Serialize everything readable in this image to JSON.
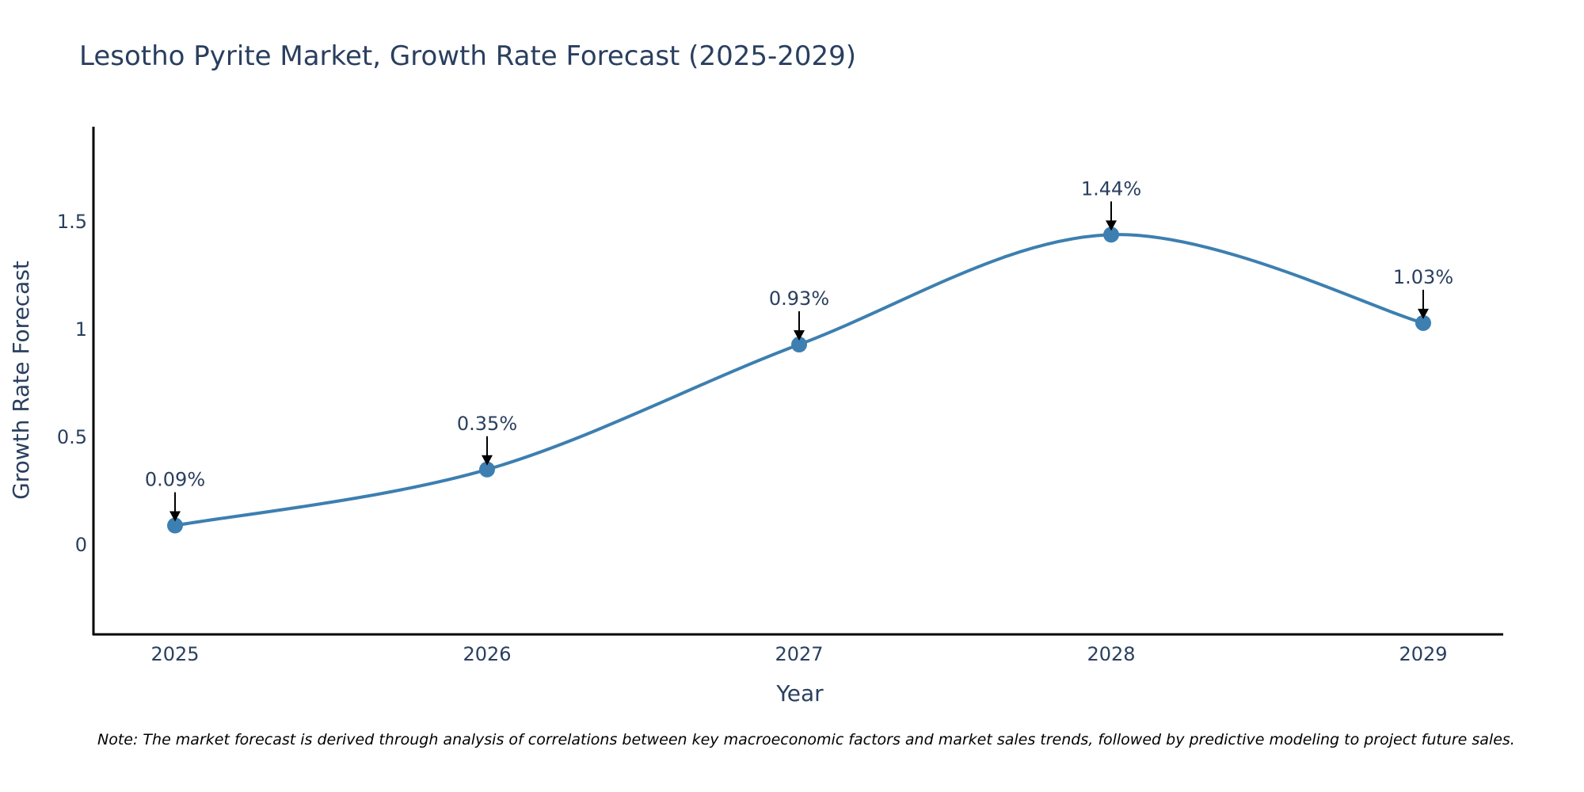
{
  "chart_data": {
    "type": "line",
    "title": "Lesotho Pyrite Market, Growth Rate Forecast (2025-2029)",
    "xlabel": "Year",
    "ylabel": "Growth Rate Forecast",
    "x": [
      "2025",
      "2026",
      "2027",
      "2028",
      "2029"
    ],
    "series": [
      {
        "name": "Growth Rate Forecast",
        "values": [
          0.09,
          0.35,
          0.93,
          1.44,
          1.03
        ],
        "color": "#3d7fb0",
        "line_shape": "spline",
        "markers": true
      }
    ],
    "annotations": [
      "0.09%",
      "0.35%",
      "0.93%",
      "1.44%",
      "1.03%"
    ],
    "y_ticks": [
      0,
      0.5,
      1,
      1.5
    ],
    "y_tick_labels": [
      "0",
      "0.5",
      "1",
      "1.5"
    ],
    "ylim": [
      -0.42,
      1.94
    ],
    "grid": false,
    "legend": "none"
  },
  "note": "Note: The market forecast is derived through analysis of correlations between key macroeconomic factors and market sales trends, followed by predictive modeling to project future sales."
}
